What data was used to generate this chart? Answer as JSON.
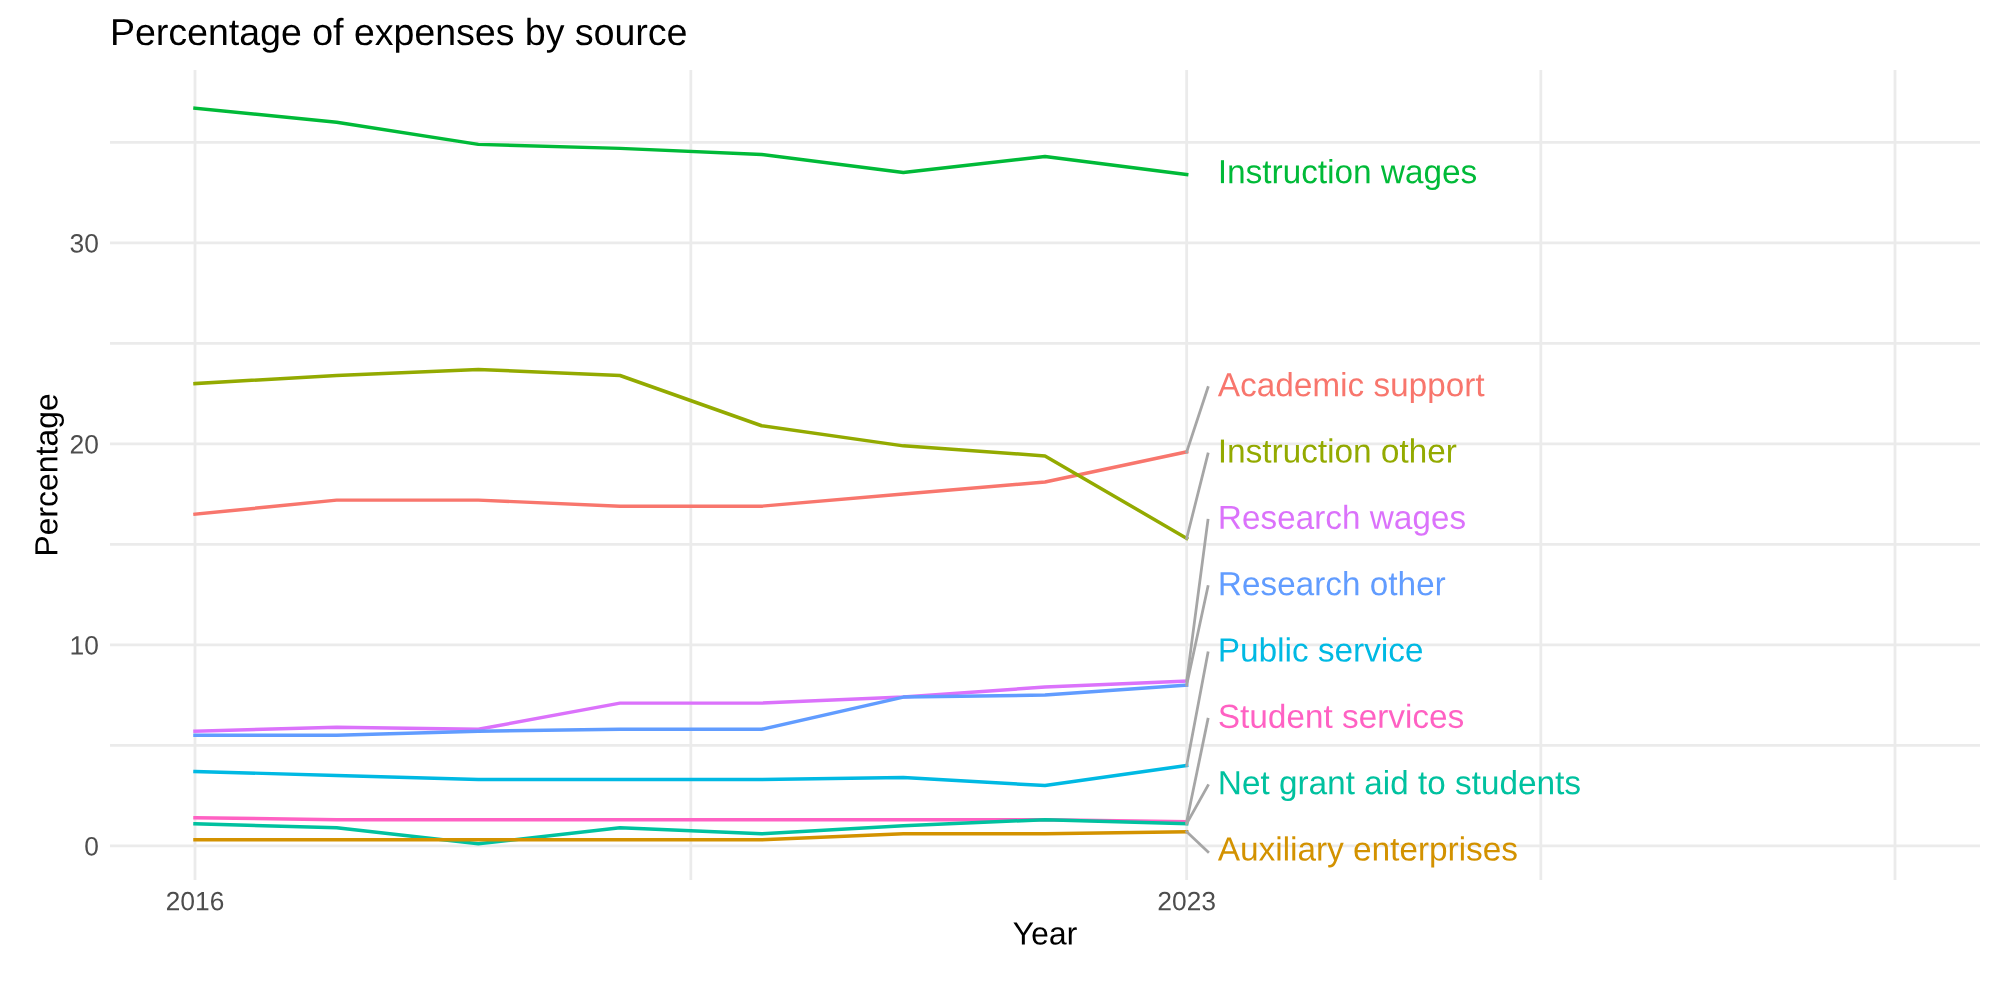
{
  "chart_data": {
    "type": "line",
    "title": "Percentage of expenses by source",
    "xlabel": "Year",
    "ylabel": "Percentage",
    "x": [
      2016,
      2017,
      2018,
      2019,
      2020,
      2021,
      2022,
      2023
    ],
    "series": [
      {
        "name": "Instruction wages",
        "color": "#00BA38",
        "values": [
          36.7,
          36.0,
          34.9,
          34.7,
          34.4,
          33.5,
          34.3,
          33.4
        ]
      },
      {
        "name": "Academic support",
        "color": "#F8766D",
        "values": [
          16.5,
          17.2,
          17.2,
          16.9,
          16.9,
          17.5,
          18.1,
          19.6
        ]
      },
      {
        "name": "Instruction other",
        "color": "#93AA00",
        "values": [
          23.0,
          23.4,
          23.7,
          23.4,
          20.9,
          19.9,
          19.4,
          15.3
        ]
      },
      {
        "name": "Research wages",
        "color": "#DB72FB",
        "values": [
          5.7,
          5.9,
          5.8,
          7.1,
          7.1,
          7.4,
          7.9,
          8.2
        ]
      },
      {
        "name": "Research other",
        "color": "#619CFF",
        "values": [
          5.5,
          5.5,
          5.7,
          5.8,
          5.8,
          7.4,
          7.5,
          8.0
        ]
      },
      {
        "name": "Public service",
        "color": "#00B9E3",
        "values": [
          3.7,
          3.5,
          3.3,
          3.3,
          3.3,
          3.4,
          3.0,
          4.0
        ]
      },
      {
        "name": "Student services",
        "color": "#FF61C3",
        "values": [
          1.4,
          1.3,
          1.3,
          1.3,
          1.3,
          1.3,
          1.3,
          1.2
        ]
      },
      {
        "name": "Net grant aid to students",
        "color": "#00C19F",
        "values": [
          1.1,
          0.9,
          0.1,
          0.9,
          0.6,
          1.0,
          1.3,
          1.1
        ]
      },
      {
        "name": "Auxiliary enterprises",
        "color": "#D39200",
        "values": [
          0.3,
          0.3,
          0.3,
          0.3,
          0.3,
          0.6,
          0.6,
          0.7
        ]
      }
    ],
    "xlim": [
      2015.4,
      2028.6
    ],
    "xticks": [
      2016,
      {
        "value": 2019.5,
        "label": null
      },
      2023,
      {
        "value": 2025.5,
        "label": null
      },
      {
        "value": 2028,
        "label": null
      }
    ],
    "ylim": [
      -1.7,
      38.6
    ],
    "yticks": [
      0,
      {
        "value": 5,
        "label": null
      },
      10,
      {
        "value": 15,
        "label": null
      },
      20,
      {
        "value": 25,
        "label": null
      },
      30,
      {
        "value": 35,
        "label": null
      }
    ],
    "grid": true,
    "legend": false
  }
}
